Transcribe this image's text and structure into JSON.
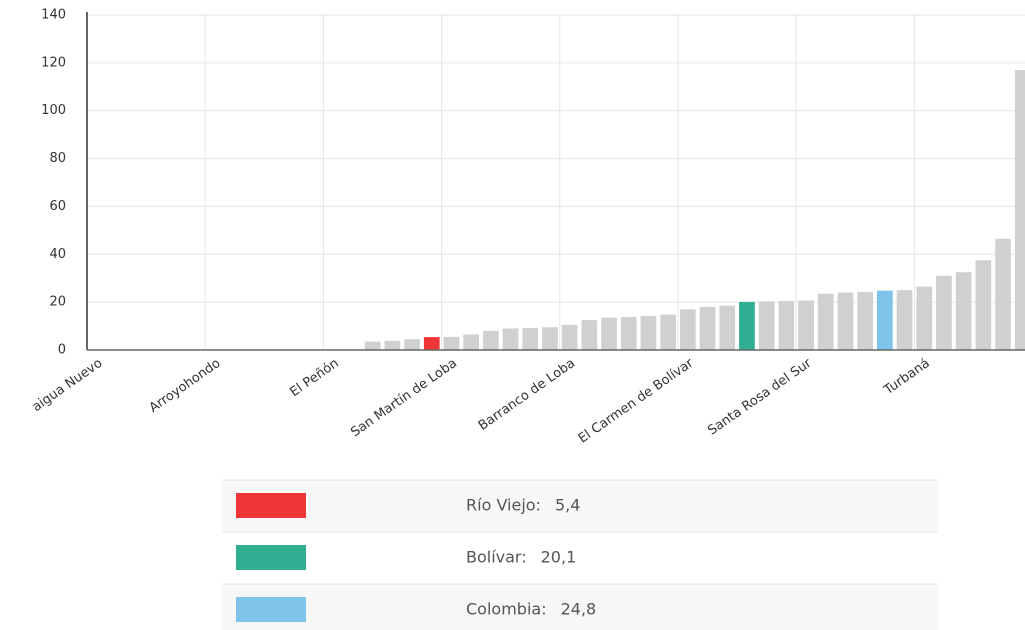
{
  "chart_data": {
    "type": "bar",
    "categories": [
      "aigua Nuevo",
      null,
      null,
      null,
      null,
      null,
      "Arroyohondo",
      null,
      null,
      null,
      null,
      null,
      "El Peñón",
      null,
      null,
      null,
      null,
      null,
      "San Martín de Loba",
      null,
      null,
      null,
      null,
      null,
      "Barranco de Loba",
      null,
      null,
      null,
      null,
      null,
      "El Carmen de Bolívar",
      null,
      null,
      null,
      null,
      null,
      "Santa Rosa del Sur",
      null,
      null,
      null,
      null,
      null,
      "Turbaná",
      null,
      null,
      null,
      null,
      null
    ],
    "values": [
      0,
      0,
      0,
      0,
      0,
      0,
      0,
      0,
      0,
      0,
      0,
      0,
      0,
      0,
      3.5,
      3.8,
      4.5,
      5.4,
      5.5,
      6.5,
      8,
      9,
      9.2,
      9.5,
      10.5,
      12.5,
      13.5,
      13.8,
      14.2,
      14.8,
      17,
      18,
      18.5,
      20.1,
      20.3,
      20.5,
      20.7,
      23.5,
      24,
      24.2,
      24.8,
      25,
      26.5,
      31,
      32.5,
      37.5,
      46.5,
      117
    ],
    "colors": [
      "#cfd0d2",
      "#cfd0d2",
      "#cfd0d2",
      "#cfd0d2",
      "#cfd0d2",
      "#cfd0d2",
      "#cfd0d2",
      "#cfd0d2",
      "#cfd0d2",
      "#cfd0d2",
      "#cfd0d2",
      "#cfd0d2",
      "#cfd0d2",
      "#cfd0d2",
      "#cfd0d2",
      "#cfd0d2",
      "#cfd0d2",
      "#ef3535",
      "#cfd0d2",
      "#cfd0d2",
      "#cfd0d2",
      "#cfd0d2",
      "#cfd0d2",
      "#cfd0d2",
      "#cfd0d2",
      "#cfd0d2",
      "#cfd0d2",
      "#cfd0d2",
      "#cfd0d2",
      "#cfd0d2",
      "#cfd0d2",
      "#cfd0d2",
      "#cfd0d2",
      "#2fae92",
      "#cfd0d2",
      "#cfd0d2",
      "#cfd0d2",
      "#cfd0d2",
      "#cfd0d2",
      "#cfd0d2",
      "#7fc2ea",
      "#cfd0d2",
      "#cfd0d2",
      "#cfd0d2",
      "#cfd0d2",
      "#cfd0d2",
      "#cfd0d2",
      "#cfd0d2"
    ],
    "ylim": [
      0,
      140
    ],
    "yticks": [
      0,
      20,
      40,
      60,
      80,
      100,
      120,
      140
    ],
    "grid": true,
    "legend": [
      {
        "name": "Río Viejo:",
        "color": "#ef3535",
        "value": 5.4,
        "label": "5,4"
      },
      {
        "name": "Bolívar:",
        "color": "#2fae92",
        "value": 20.1,
        "label": "20,1"
      },
      {
        "name": "Colombia:",
        "color": "#7fc2ea",
        "value": 24.8,
        "label": "24,8"
      }
    ]
  }
}
